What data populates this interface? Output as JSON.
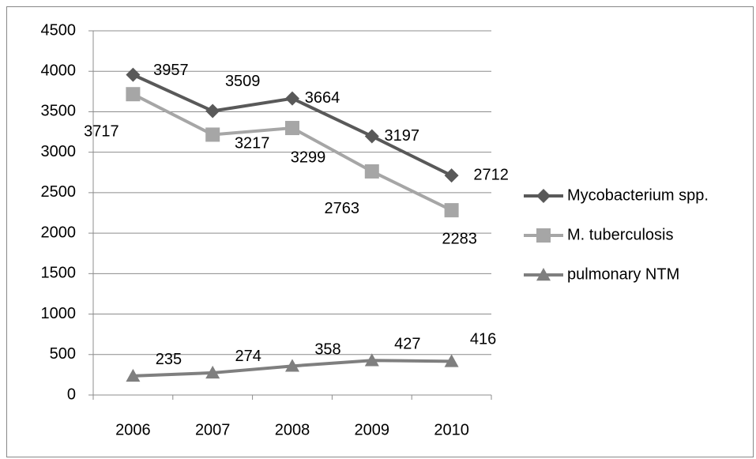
{
  "chart_data": {
    "type": "line",
    "categories": [
      "2006",
      "2007",
      "2008",
      "2009",
      "2010"
    ],
    "series": [
      {
        "name": "Mycobacterium spp.",
        "color": "#595959",
        "marker": "diamond",
        "values": [
          3957,
          3509,
          3664,
          3197,
          2712
        ]
      },
      {
        "name": "M. tuberculosis",
        "color": "#a6a6a6",
        "marker": "square",
        "values": [
          3717,
          3217,
          3299,
          2763,
          2283
        ]
      },
      {
        "name": "pulmonary NTM",
        "color": "#7f7f7f",
        "marker": "triangle",
        "values": [
          235,
          274,
          358,
          427,
          416
        ]
      }
    ],
    "ylim": [
      0,
      4500
    ],
    "yticks": [
      0,
      500,
      1000,
      1500,
      2000,
      2500,
      3000,
      3500,
      4000,
      4500
    ],
    "grid": true,
    "legend": "right"
  }
}
